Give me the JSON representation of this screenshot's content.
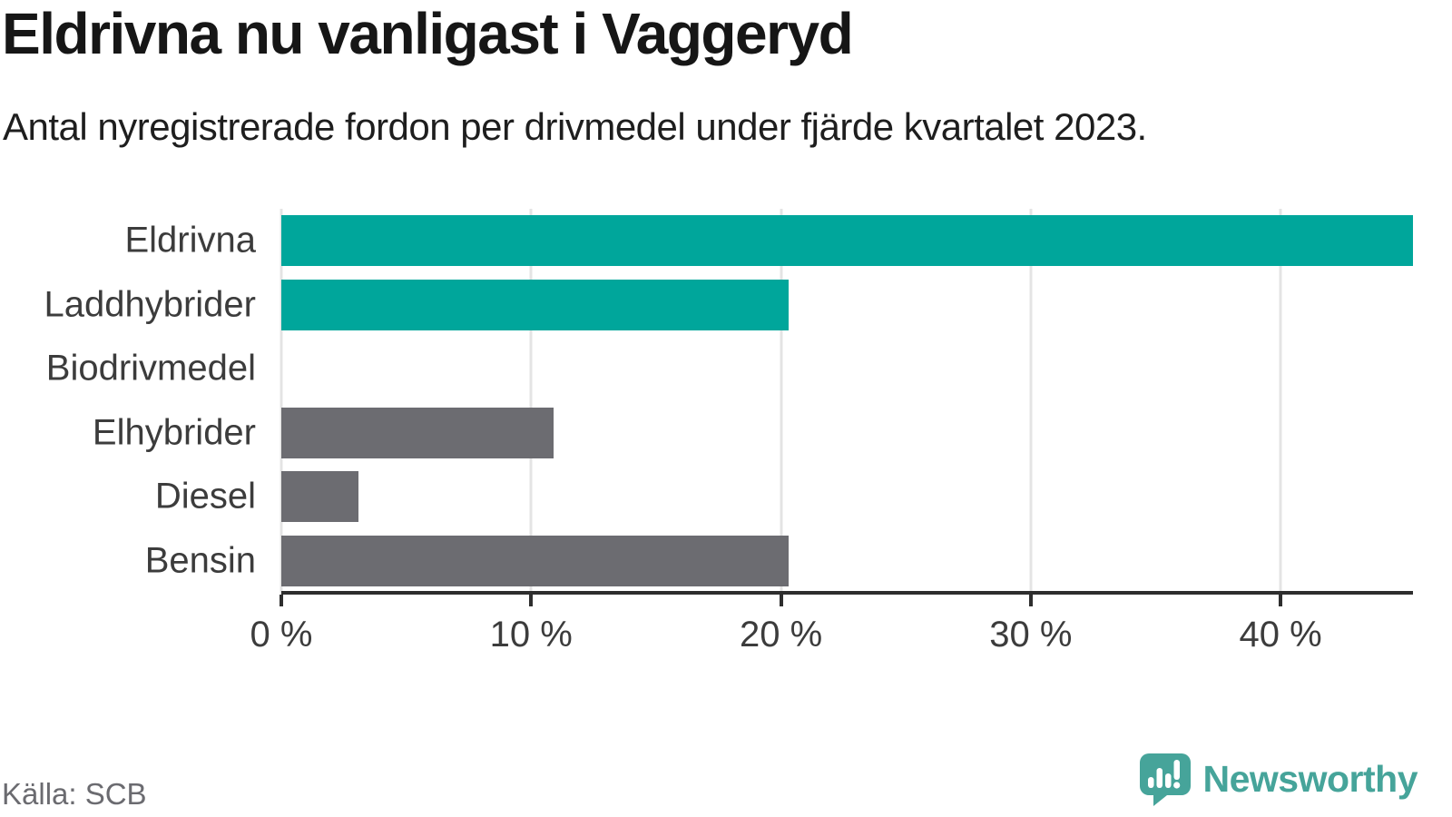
{
  "header": {
    "title": "Eldrivna nu vanligast i Vaggeryd",
    "subtitle": "Antal nyregistrerade fordon per drivmedel under fjärde kvartalet 2023."
  },
  "chart_data": {
    "type": "bar",
    "orientation": "horizontal",
    "title": "Eldrivna nu vanligast i Vaggeryd",
    "subtitle": "Antal nyregistrerade fordon per drivmedel under fjärde kvartalet 2023.",
    "categories": [
      "Eldrivna",
      "Laddhybrider",
      "Biodrivmedel",
      "Elhybrider",
      "Diesel",
      "Bensin"
    ],
    "values": [
      45.3,
      20.3,
      0,
      10.9,
      3.1,
      20.3
    ],
    "unit": "%",
    "xlim": [
      0,
      45.3
    ],
    "x_ticks": [
      0,
      10,
      20,
      30,
      40
    ],
    "x_tick_labels": [
      "0 %",
      "10 %",
      "20 %",
      "30 %",
      "40 %"
    ],
    "bar_colors": [
      "#00a69b",
      "#00a69b",
      "#6c6c71",
      "#6c6c71",
      "#6c6c71",
      "#6c6c71"
    ],
    "highlight_color": "#00a69b",
    "default_color": "#6c6c71",
    "gridline_color": "#e4e4e4",
    "axis_color": "#2e2e2e",
    "grid": true,
    "legend": false
  },
  "footer": {
    "source": "Källa: SCB",
    "brand": "Newsworthy",
    "brand_color": "#46a49a"
  }
}
